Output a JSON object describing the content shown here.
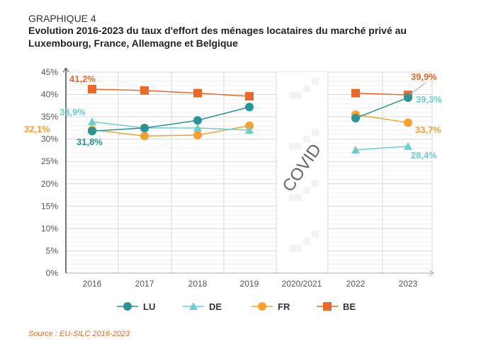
{
  "header": {
    "supertitle": "GRAPHIQUE 4",
    "title": "Evolution 2016-2023 du taux d'effort des ménages locataires du marché privé au Luxembourg, France, Allemagne et Belgique"
  },
  "source": "Source : EU-SILC 2016-2023",
  "chart_data": {
    "type": "line",
    "categories": [
      "2016",
      "2017",
      "2018",
      "2019",
      "2020/2021",
      "2022",
      "2023"
    ],
    "ylim": [
      0,
      45
    ],
    "yticks": [
      "0%",
      "5%",
      "10%",
      "15%",
      "20%",
      "25%",
      "30%",
      "35%",
      "40%",
      "45%"
    ],
    "annotation": "COVID",
    "series": [
      {
        "name": "LU",
        "color": "#2a9396",
        "marker": "circle",
        "values": [
          31.8,
          32.5,
          34.2,
          37.2,
          null,
          34.7,
          39.3
        ]
      },
      {
        "name": "DE",
        "color": "#6dcdd0",
        "marker": "triangle",
        "values": [
          33.9,
          32.5,
          32.5,
          32.0,
          null,
          27.6,
          28.4
        ]
      },
      {
        "name": "FR",
        "color": "#f7a030",
        "marker": "circle",
        "values": [
          32.1,
          30.7,
          30.9,
          33.0,
          null,
          35.5,
          33.7
        ]
      },
      {
        "name": "BE",
        "color": "#e8692a",
        "marker": "square",
        "values": [
          41.2,
          40.9,
          40.3,
          39.6,
          null,
          40.3,
          39.9
        ]
      }
    ],
    "data_labels": [
      {
        "text": "41,2%",
        "series": "BE",
        "color": "#e8692a"
      },
      {
        "text": "33,9%",
        "series": "DE",
        "color": "#6dcdd0"
      },
      {
        "text": "32,1%",
        "series": "FR",
        "color": "#f7a030"
      },
      {
        "text": "31,8%",
        "series": "LU",
        "color": "#2a9396"
      },
      {
        "text": "39,9%",
        "series": "BE",
        "color": "#e8692a"
      },
      {
        "text": "39,3%",
        "series": "LU",
        "color": "#6dcdd0"
      },
      {
        "text": "33,7%",
        "series": "FR",
        "color": "#f7a030"
      },
      {
        "text": "28,4%",
        "series": "DE",
        "color": "#6dcdd0"
      }
    ],
    "legend": "bottom"
  }
}
